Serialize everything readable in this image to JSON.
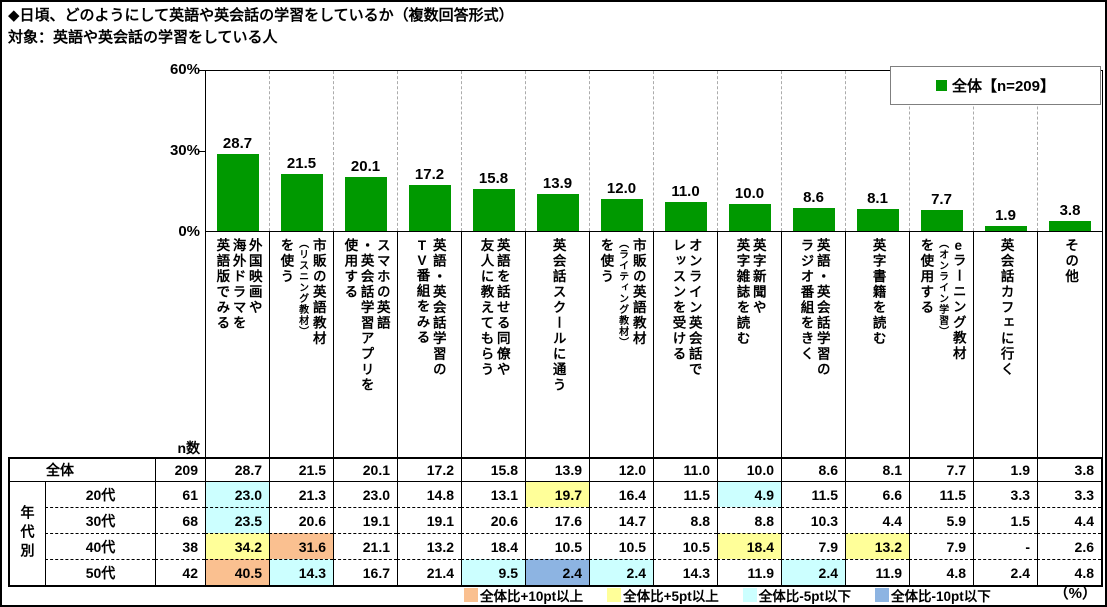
{
  "title": "◆日頃、どのようにして英語や英会話の学習をしているか（複数回答形式）",
  "subtitle": "対象：英語や英会話の学習をしている人",
  "legend": {
    "label": "全体【n=209】",
    "marker_color": "#009900"
  },
  "y_axis": {
    "ticks": [
      "60%",
      "30%",
      "0%"
    ],
    "max": 60
  },
  "chart_data": {
    "type": "bar",
    "title": "日頃、どのようにして英語や英会話の学習をしているか（複数回答形式）",
    "series_name": "全体【n=209】",
    "categories": [
      "外国映画や海外ドラマを英語版でみる",
      "市販の英語教材（リスニング教材）を使う",
      "スマホの英語・英会話学習アプリを使用する",
      "英語・英会話学習のTV番組をみる",
      "英語を話せる同僚や友人に教えてもらう",
      "英会話スクールに通う",
      "市販の英語教材（ライティング教材）を使う",
      "オンライン英会話でレッスンを受ける",
      "英字新聞や英字雑誌を読む",
      "英語・英会話学習のラジオ番組をきく",
      "英字書籍を読む",
      "eラーニング教材（オンライン学習）を使用する",
      "英会話カフェに行く",
      "その他"
    ],
    "values": [
      28.7,
      21.5,
      20.1,
      17.2,
      15.8,
      13.9,
      12.0,
      11.0,
      10.0,
      8.6,
      8.1,
      7.7,
      1.9,
      3.8
    ],
    "ylabel": "%",
    "ylim": [
      0,
      60
    ],
    "yticks": [
      0,
      30,
      60
    ],
    "bar_color": "#009900",
    "grid": "vertical-dashed",
    "legend_position": "top-right"
  },
  "category_cells": [
    {
      "lines": [
        [
          {
            "t": "外国映画や"
          }
        ],
        [
          {
            "t": "海外ドラマを"
          }
        ],
        [
          {
            "t": "英語版でみる"
          }
        ]
      ]
    },
    {
      "lines": [
        [
          {
            "t": "市販の英語教材"
          }
        ],
        [
          {
            "t": "（リスニング教材）",
            "c": "small"
          }
        ],
        [
          {
            "t": "を使う"
          }
        ]
      ]
    },
    {
      "lines": [
        [
          {
            "t": "スマホの英語"
          }
        ],
        [
          {
            "t": "・英会話学習アプリを"
          }
        ],
        [
          {
            "t": "使用する"
          }
        ]
      ]
    },
    {
      "lines": [
        [
          {
            "t": "英語・英会話学習の"
          }
        ],
        [
          {
            "t": "TV",
            "c": "upright"
          },
          {
            "t": "番組をみる"
          }
        ]
      ]
    },
    {
      "lines": [
        [
          {
            "t": "英語を話せる同僚や"
          }
        ],
        [
          {
            "t": "友人に教えてもらう"
          }
        ]
      ]
    },
    {
      "lines": [
        [
          {
            "t": "英会話スクールに通う"
          }
        ]
      ]
    },
    {
      "lines": [
        [
          {
            "t": "市販の英語教材"
          }
        ],
        [
          {
            "t": "（ライティング教材）",
            "c": "small"
          }
        ],
        [
          {
            "t": "を使う"
          }
        ]
      ]
    },
    {
      "lines": [
        [
          {
            "t": "オンライン英会話で"
          }
        ],
        [
          {
            "t": "レッスンを受ける"
          }
        ]
      ]
    },
    {
      "lines": [
        [
          {
            "t": "英字新聞や"
          }
        ],
        [
          {
            "t": "英字雑誌を読む"
          }
        ]
      ]
    },
    {
      "lines": [
        [
          {
            "t": "英語・英会話学習の"
          }
        ],
        [
          {
            "t": "ラジオ番組をきく"
          }
        ]
      ]
    },
    {
      "lines": [
        [
          {
            "t": "英字書籍を読む"
          }
        ]
      ]
    },
    {
      "lines": [
        [
          {
            "t": "e",
            "c": "upright"
          },
          {
            "t": "ラーニング教材"
          }
        ],
        [
          {
            "t": "（オンライン学習）",
            "c": "small"
          }
        ],
        [
          {
            "t": "を使用する"
          }
        ]
      ]
    },
    {
      "lines": [
        [
          {
            "t": "英会話カフェに行く"
          }
        ]
      ]
    },
    {
      "lines": [
        [
          {
            "t": "その他"
          }
        ]
      ]
    }
  ],
  "table": {
    "n_header": "n数",
    "group_label": "年代別",
    "overall_row": {
      "label": "全体",
      "n": "209",
      "values": [
        "28.7",
        "21.5",
        "20.1",
        "17.2",
        "15.8",
        "13.9",
        "12.0",
        "11.0",
        "10.0",
        "8.6",
        "8.1",
        "7.7",
        "1.9",
        "3.8"
      ]
    },
    "rows": [
      {
        "label": "20代",
        "n": "61",
        "values": [
          "23.0",
          "21.3",
          "23.0",
          "14.8",
          "13.1",
          "19.7",
          "16.4",
          "11.5",
          "4.9",
          "11.5",
          "6.6",
          "11.5",
          "3.3",
          "3.3"
        ],
        "highlights": {
          "0": "low5",
          "5": "high5",
          "8": "low5"
        }
      },
      {
        "label": "30代",
        "n": "68",
        "values": [
          "23.5",
          "20.6",
          "19.1",
          "19.1",
          "20.6",
          "17.6",
          "14.7",
          "8.8",
          "8.8",
          "10.3",
          "4.4",
          "5.9",
          "1.5",
          "4.4"
        ],
        "highlights": {
          "0": "low5"
        }
      },
      {
        "label": "40代",
        "n": "38",
        "values": [
          "34.2",
          "31.6",
          "21.1",
          "13.2",
          "18.4",
          "10.5",
          "10.5",
          "10.5",
          "18.4",
          "7.9",
          "13.2",
          "7.9",
          "-",
          "2.6"
        ],
        "highlights": {
          "0": "high5",
          "1": "high10",
          "8": "high5",
          "10": "high5"
        }
      },
      {
        "label": "50代",
        "n": "42",
        "values": [
          "40.5",
          "14.3",
          "16.7",
          "21.4",
          "9.5",
          "2.4",
          "2.4",
          "14.3",
          "11.9",
          "2.4",
          "11.9",
          "4.8",
          "2.4",
          "4.8"
        ],
        "highlights": {
          "0": "high10",
          "1": "low5",
          "4": "low5",
          "5": "low10",
          "6": "low5",
          "9": "low5"
        }
      }
    ]
  },
  "key": {
    "items": [
      {
        "label": "全体比+10pt以上",
        "color": "#FAC090",
        "cls": "high10"
      },
      {
        "label": "全体比+5pt以上",
        "color": "#FFFF99",
        "cls": "high5"
      },
      {
        "label": "全体比-5pt以下",
        "color": "#CCFFFF",
        "cls": "low5"
      },
      {
        "label": "全体比-10pt以下",
        "color": "#8DB4E2",
        "cls": "low10"
      }
    ],
    "unit": "（%）"
  }
}
